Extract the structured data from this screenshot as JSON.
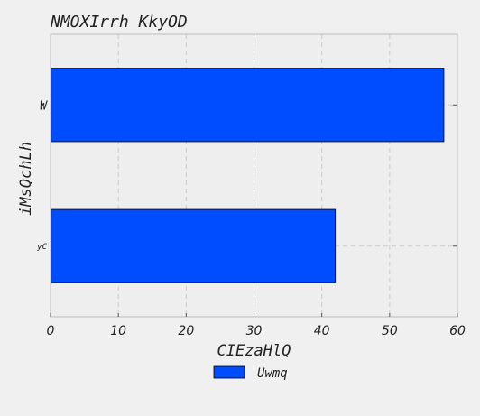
{
  "chart_data": {
    "type": "bar",
    "orientation": "horizontal",
    "title": "NMOXIrrh KkyOD",
    "xlabel": "CIEzaHlQ",
    "ylabel": "iMsQchLh",
    "categories": [
      "yC",
      "W"
    ],
    "series": [
      {
        "name": "Uwmq",
        "values": [
          42,
          58
        ],
        "color": "#004cff"
      }
    ],
    "xlim": [
      0,
      60
    ],
    "xticks": [
      "0",
      "10",
      "20",
      "30",
      "40",
      "50",
      "60"
    ],
    "grid": true,
    "legend_position": "bottom-center",
    "colors": {
      "background": "#f0f0f0",
      "plot_background": "#eeeeee",
      "bar": "#004cff",
      "bar_edge": "#000000",
      "grid": "#cccccc",
      "spine": "#bbbbbb"
    }
  }
}
